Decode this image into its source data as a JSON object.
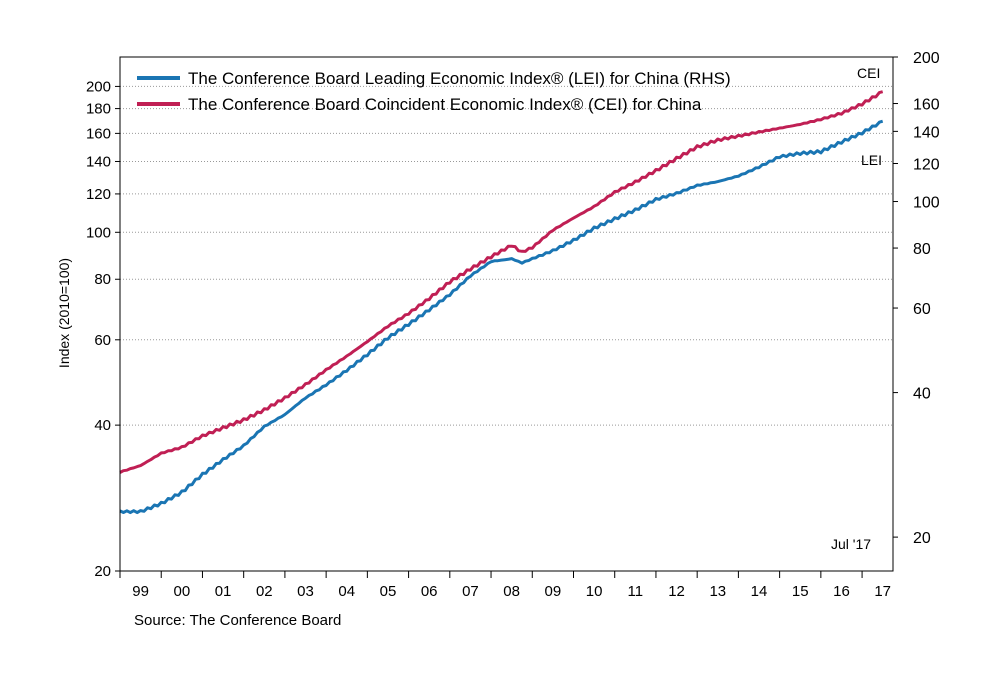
{
  "source": "Source: The Conference Board",
  "colors": {
    "lei": "#1a75b3",
    "cei": "#c01f54",
    "grid": "#999999"
  },
  "chart_data": {
    "type": "line",
    "left_axis": {
      "label": "Index (2010=100)",
      "scale": "log",
      "range": [
        20,
        230
      ],
      "ticks": [
        20,
        40,
        60,
        80,
        100,
        120,
        140,
        160,
        180,
        200
      ]
    },
    "right_axis": {
      "scale": "log",
      "range": [
        17,
        200
      ],
      "ticks": [
        20,
        40,
        60,
        80,
        100,
        120,
        140,
        160,
        200
      ]
    },
    "x_axis": {
      "range": [
        1999.0,
        2017.75
      ],
      "tick_labels": [
        "99",
        "00",
        "01",
        "02",
        "03",
        "04",
        "05",
        "06",
        "07",
        "08",
        "09",
        "10",
        "11",
        "12",
        "13",
        "14",
        "15",
        "16",
        "17"
      ]
    },
    "grid": "horizontal-dotted",
    "legend_position": "top-left",
    "annotations": {
      "cei": "CEI",
      "lei": "LEI",
      "date": "Jul '17"
    },
    "series": [
      {
        "key": "lei",
        "name": "The Conference Board Leading Economic Index® (LEI) for China (RHS)",
        "axis": "right",
        "x": [
          1999.0,
          1999.5,
          2000.0,
          2000.5,
          2001.0,
          2001.5,
          2002.0,
          2002.5,
          2003.0,
          2003.5,
          2004.0,
          2004.5,
          2005.0,
          2005.5,
          2006.0,
          2006.5,
          2007.0,
          2007.5,
          2008.0,
          2008.5,
          2008.75,
          2009.0,
          2009.5,
          2010.0,
          2010.5,
          2011.0,
          2011.5,
          2012.0,
          2012.5,
          2013.0,
          2013.5,
          2014.0,
          2014.5,
          2015.0,
          2015.5,
          2016.0,
          2016.5,
          2017.0,
          2017.5
        ],
        "values": [
          22.6,
          22.6,
          23.5,
          24.8,
          27,
          29,
          31,
          34,
          36,
          39,
          41.5,
          44.5,
          48,
          52,
          55.5,
          59.5,
          64,
          70,
          75,
          76,
          74.5,
          76,
          79,
          83,
          88,
          92,
          96,
          101,
          104,
          108,
          110,
          113,
          118,
          124,
          126,
          127,
          133,
          139,
          147
        ]
      },
      {
        "key": "cei",
        "name": "The Conference Board Coincident Economic Index® (CEI) for China",
        "axis": "left",
        "x": [
          1999.0,
          1999.5,
          2000.0,
          2000.5,
          2001.0,
          2001.5,
          2002.0,
          2002.5,
          2003.0,
          2003.5,
          2004.0,
          2004.5,
          2005.0,
          2005.5,
          2006.0,
          2006.5,
          2007.0,
          2007.5,
          2008.0,
          2008.5,
          2008.75,
          2009.0,
          2009.5,
          2010.0,
          2010.5,
          2011.0,
          2011.5,
          2012.0,
          2012.5,
          2013.0,
          2013.5,
          2014.0,
          2014.5,
          2015.0,
          2015.5,
          2016.0,
          2016.5,
          2017.0,
          2017.5
        ],
        "values": [
          32,
          33,
          35,
          36,
          38,
          39.5,
          41,
          43,
          45.5,
          48.5,
          52,
          55.5,
          59.5,
          64,
          68,
          73,
          79,
          84,
          89,
          94,
          91,
          93,
          101,
          107,
          113,
          121,
          127,
          134,
          142,
          150,
          155,
          158,
          161,
          164,
          167,
          171,
          176,
          184,
          195
        ]
      }
    ]
  }
}
